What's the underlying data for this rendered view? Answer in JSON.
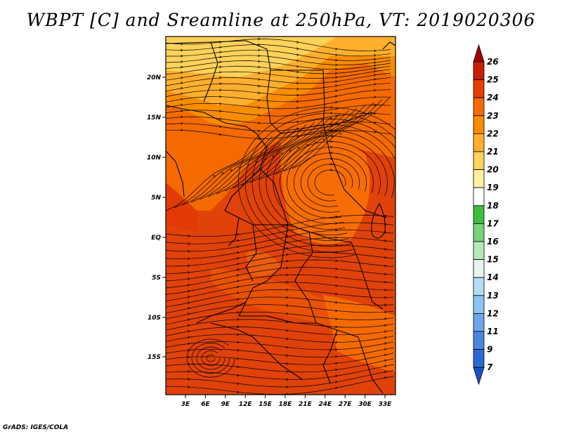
{
  "title": "WBPT [C] and Sreamline at 250hPa, VT: 2019020306",
  "credit": "GrADS: IGES/COLA",
  "map": {
    "lat_labels": [
      "20N",
      "15N",
      "10N",
      "5N",
      "EQ",
      "5S",
      "10S",
      "15S"
    ],
    "lon_labels": [
      "3E",
      "6E",
      "9E",
      "12E",
      "15E",
      "18E",
      "21E",
      "24E",
      "27E",
      "30E",
      "33E"
    ]
  },
  "colorbar": {
    "levels": [
      "26",
      "25",
      "24",
      "23",
      "22",
      "21",
      "20",
      "19",
      "18",
      "17",
      "16",
      "15",
      "14",
      "13",
      "12",
      "11",
      "9",
      "7"
    ],
    "colors": [
      "#a50000",
      "#c81e00",
      "#e63c00",
      "#f56a00",
      "#fa8c00",
      "#ffaf2d",
      "#ffd25a",
      "#fff0a0",
      "#ffffff",
      "#3cbe3c",
      "#78d278",
      "#b4eab4",
      "#e6f5f0",
      "#b4dcf5",
      "#8cc3f0",
      "#6ea5eb",
      "#4b87e1",
      "#2d69d2",
      "#1e50c8"
    ]
  }
}
